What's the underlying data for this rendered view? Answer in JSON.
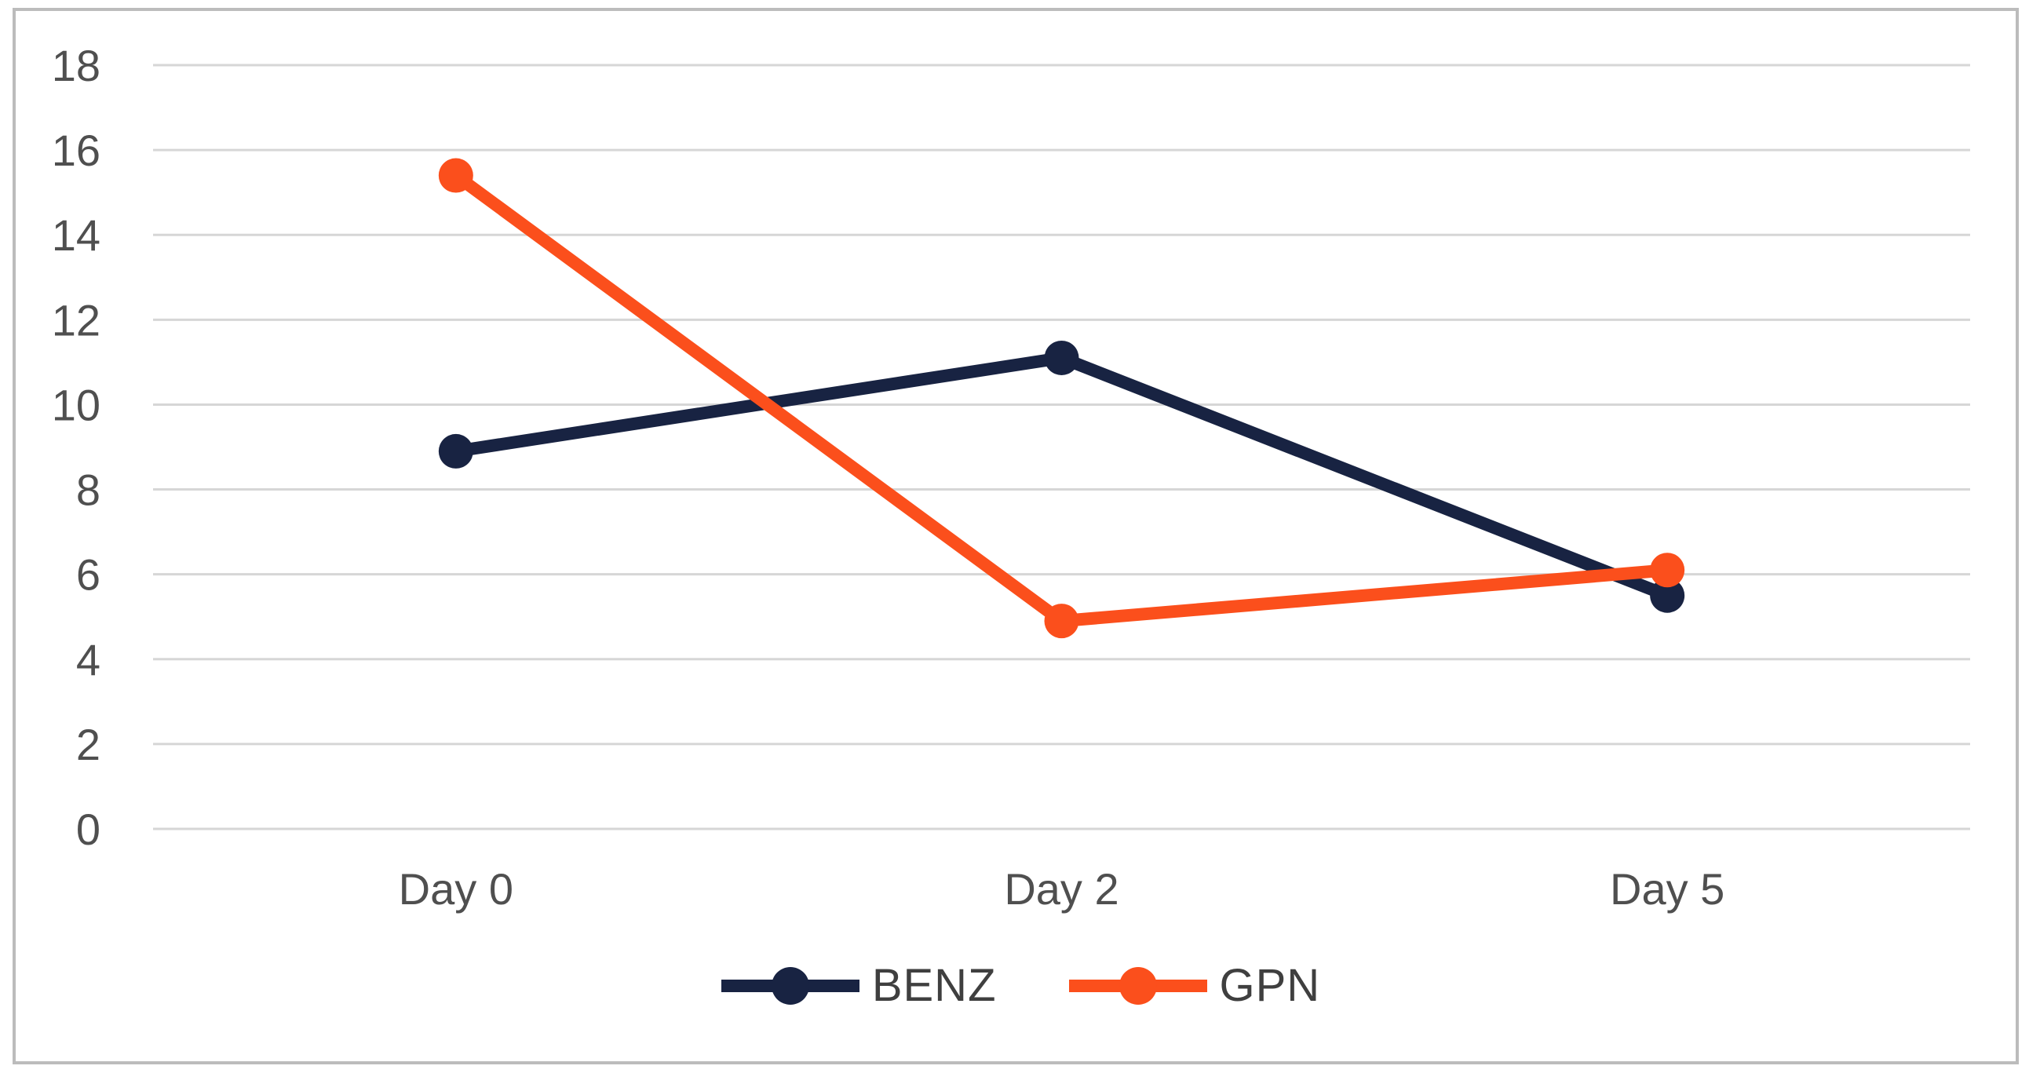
{
  "chart_data": {
    "type": "line",
    "title": "",
    "xlabel": "",
    "ylabel": "",
    "categories": [
      "Day 0",
      "Day 2",
      "Day 5"
    ],
    "series": [
      {
        "name": "BENZ",
        "values": [
          8.9,
          11.1,
          5.5
        ],
        "color": "#182342"
      },
      {
        "name": "GPN",
        "values": [
          15.4,
          4.9,
          6.1
        ],
        "color": "#FB4F1C"
      }
    ],
    "ylim": [
      0,
      18
    ],
    "yticks": [
      0,
      2,
      4,
      6,
      8,
      10,
      12,
      14,
      16,
      18
    ],
    "grid": true,
    "legend_position": "bottom-center"
  },
  "colors": {
    "background": "#ffffff",
    "frame_border": "#bcbcbc",
    "gridline": "#d6d6d6",
    "axis_text": "#4f4f4f",
    "legend_text": "#3f3f3f"
  }
}
